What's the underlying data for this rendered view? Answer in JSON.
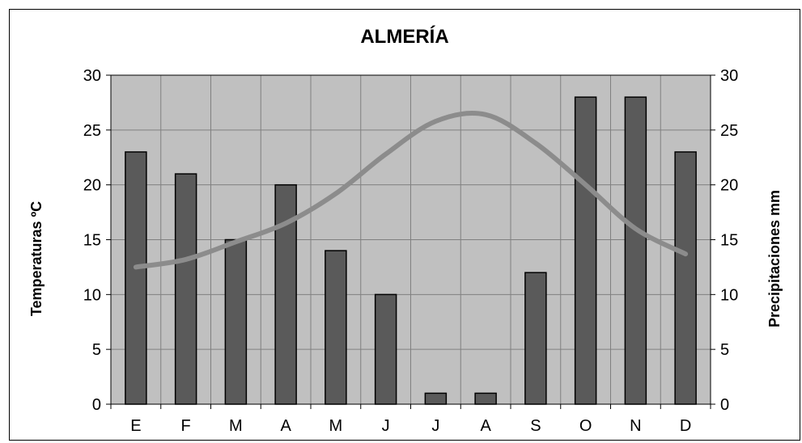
{
  "chart_data": {
    "type": "bar",
    "title": "ALMERÍA",
    "categories": [
      "E",
      "F",
      "M",
      "A",
      "M",
      "J",
      "J",
      "A",
      "S",
      "O",
      "N",
      "D"
    ],
    "precipitation": [
      23,
      21,
      15,
      20,
      14,
      10,
      1,
      1,
      12,
      28,
      28,
      23
    ],
    "temperature": [
      12.5,
      13.2,
      14.8,
      16.5,
      19.2,
      22.8,
      25.8,
      26.4,
      23.8,
      20,
      16,
      13.7
    ],
    "y_left": {
      "label": "Temperaturas ºC",
      "range": [
        0,
        30
      ],
      "ticks": [
        0,
        5,
        10,
        15,
        20,
        25,
        30
      ]
    },
    "y_right": {
      "label": "Precipitaciones mm",
      "range": [
        0,
        30
      ],
      "ticks": [
        0,
        5,
        10,
        15,
        20,
        25,
        30
      ]
    },
    "colors": {
      "plot_background": "#c0c0c0",
      "bar_fill": "#5a5a5a",
      "line": "#8c8c8c",
      "grid": "#808080"
    },
    "grid": true
  }
}
